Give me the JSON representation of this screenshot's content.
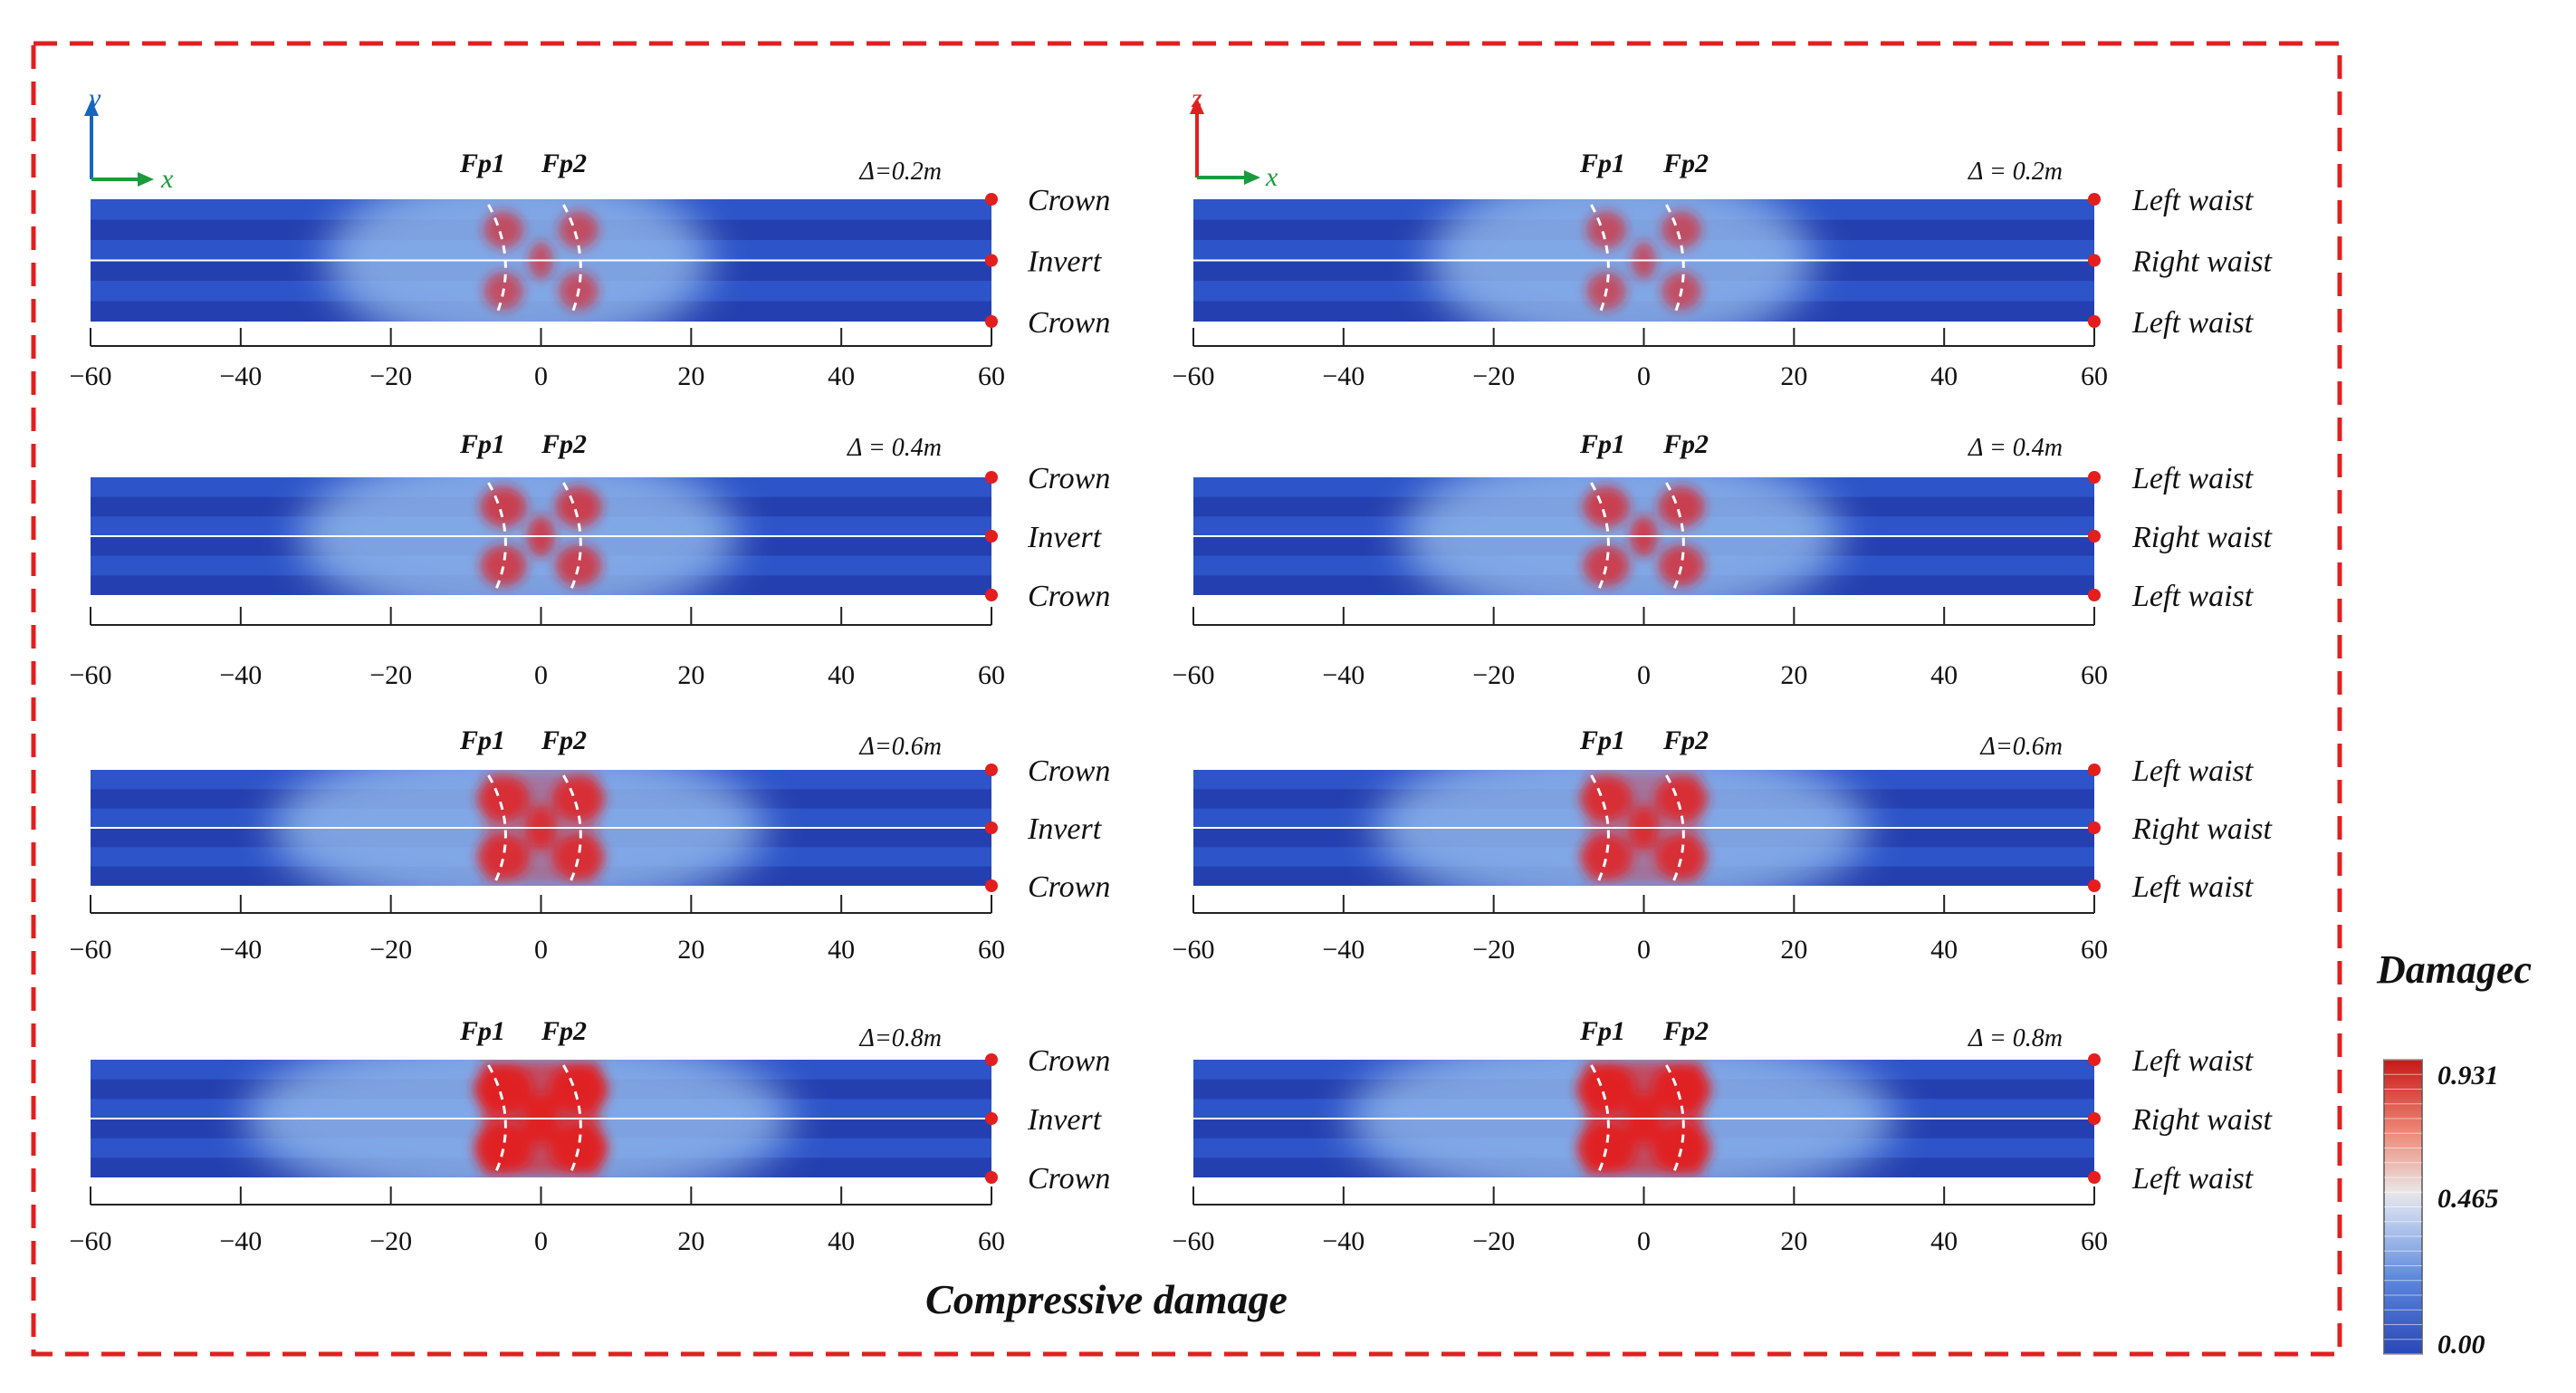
{
  "caption": "Compressive damage",
  "colorbar": {
    "title": "Damagec",
    "max_label": "0.931",
    "mid_label": "0.465",
    "min_label": "0.00",
    "low_color": "#2f4fc0",
    "mid_color": "#e8e8f0",
    "high_color": "#cc1e1e"
  },
  "axes_icons": {
    "left": {
      "vertical": "y",
      "horizontal": "x",
      "vertical_color": "#1565c0",
      "horizontal_color": "#1a9b3c"
    },
    "right": {
      "vertical": "z",
      "horizontal": "x",
      "vertical_color": "#e02020",
      "horizontal_color": "#1a9b3c"
    }
  },
  "scale_ticks": [
    "−60",
    "−40",
    "−20",
    "0",
    "20",
    "40",
    "60"
  ],
  "fault_labels": [
    "Fp1",
    "Fp2"
  ],
  "columns": [
    {
      "view": "y-x",
      "side_labels": [
        "Crown",
        "Invert",
        "Crown"
      ],
      "panels": [
        {
          "delta": "Δ=0.2m",
          "level": 0.2
        },
        {
          "delta": "Δ = 0.4m",
          "level": 0.4
        },
        {
          "delta": "Δ=0.6m",
          "level": 0.6
        },
        {
          "delta": "Δ=0.8m",
          "level": 0.8
        }
      ]
    },
    {
      "view": "z-x",
      "side_labels": [
        "Left waist",
        "Right waist",
        "Left waist"
      ],
      "panels": [
        {
          "delta": "Δ = 0.2m",
          "level": 0.2
        },
        {
          "delta": "Δ = 0.4m",
          "level": 0.4
        },
        {
          "delta": "Δ=0.6m",
          "level": 0.6
        },
        {
          "delta": "Δ = 0.8m",
          "level": 0.8
        }
      ]
    }
  ],
  "colors": {
    "frame": "#e02020",
    "marker": "#e41e1e",
    "band_light": "#2d54c8",
    "band_dark": "#2440b0"
  }
}
